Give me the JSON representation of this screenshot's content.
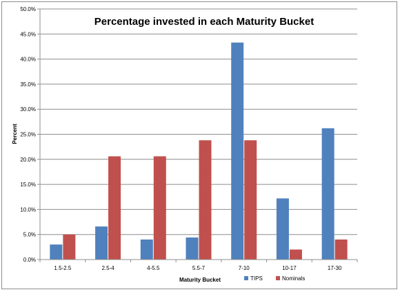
{
  "chart_data": {
    "type": "bar",
    "title": "Percentage invested in each Maturity Bucket",
    "xlabel": "Maturity Bucket",
    "ylabel": "Percent",
    "ylim": [
      0,
      50
    ],
    "yticks": [
      "0.0%",
      "5.0%",
      "10.0%",
      "15.0%",
      "20.0%",
      "25.0%",
      "30.0%",
      "35.0%",
      "40.0%",
      "45.0%",
      "50.0%"
    ],
    "categories": [
      "1.5-2.5",
      "2.5-4",
      "4-5.5",
      "5.5-7",
      "7-10",
      "10-17",
      "17-30"
    ],
    "series": [
      {
        "name": "TIPS",
        "color": "#4f81bd",
        "values": [
          3.0,
          6.6,
          4.0,
          4.4,
          43.3,
          12.2,
          26.2
        ]
      },
      {
        "name": "Nominals",
        "color": "#c0504d",
        "values": [
          5.0,
          20.6,
          20.6,
          23.8,
          23.8,
          2.0,
          4.0
        ]
      }
    ],
    "grid": true,
    "legend": "bottom"
  }
}
